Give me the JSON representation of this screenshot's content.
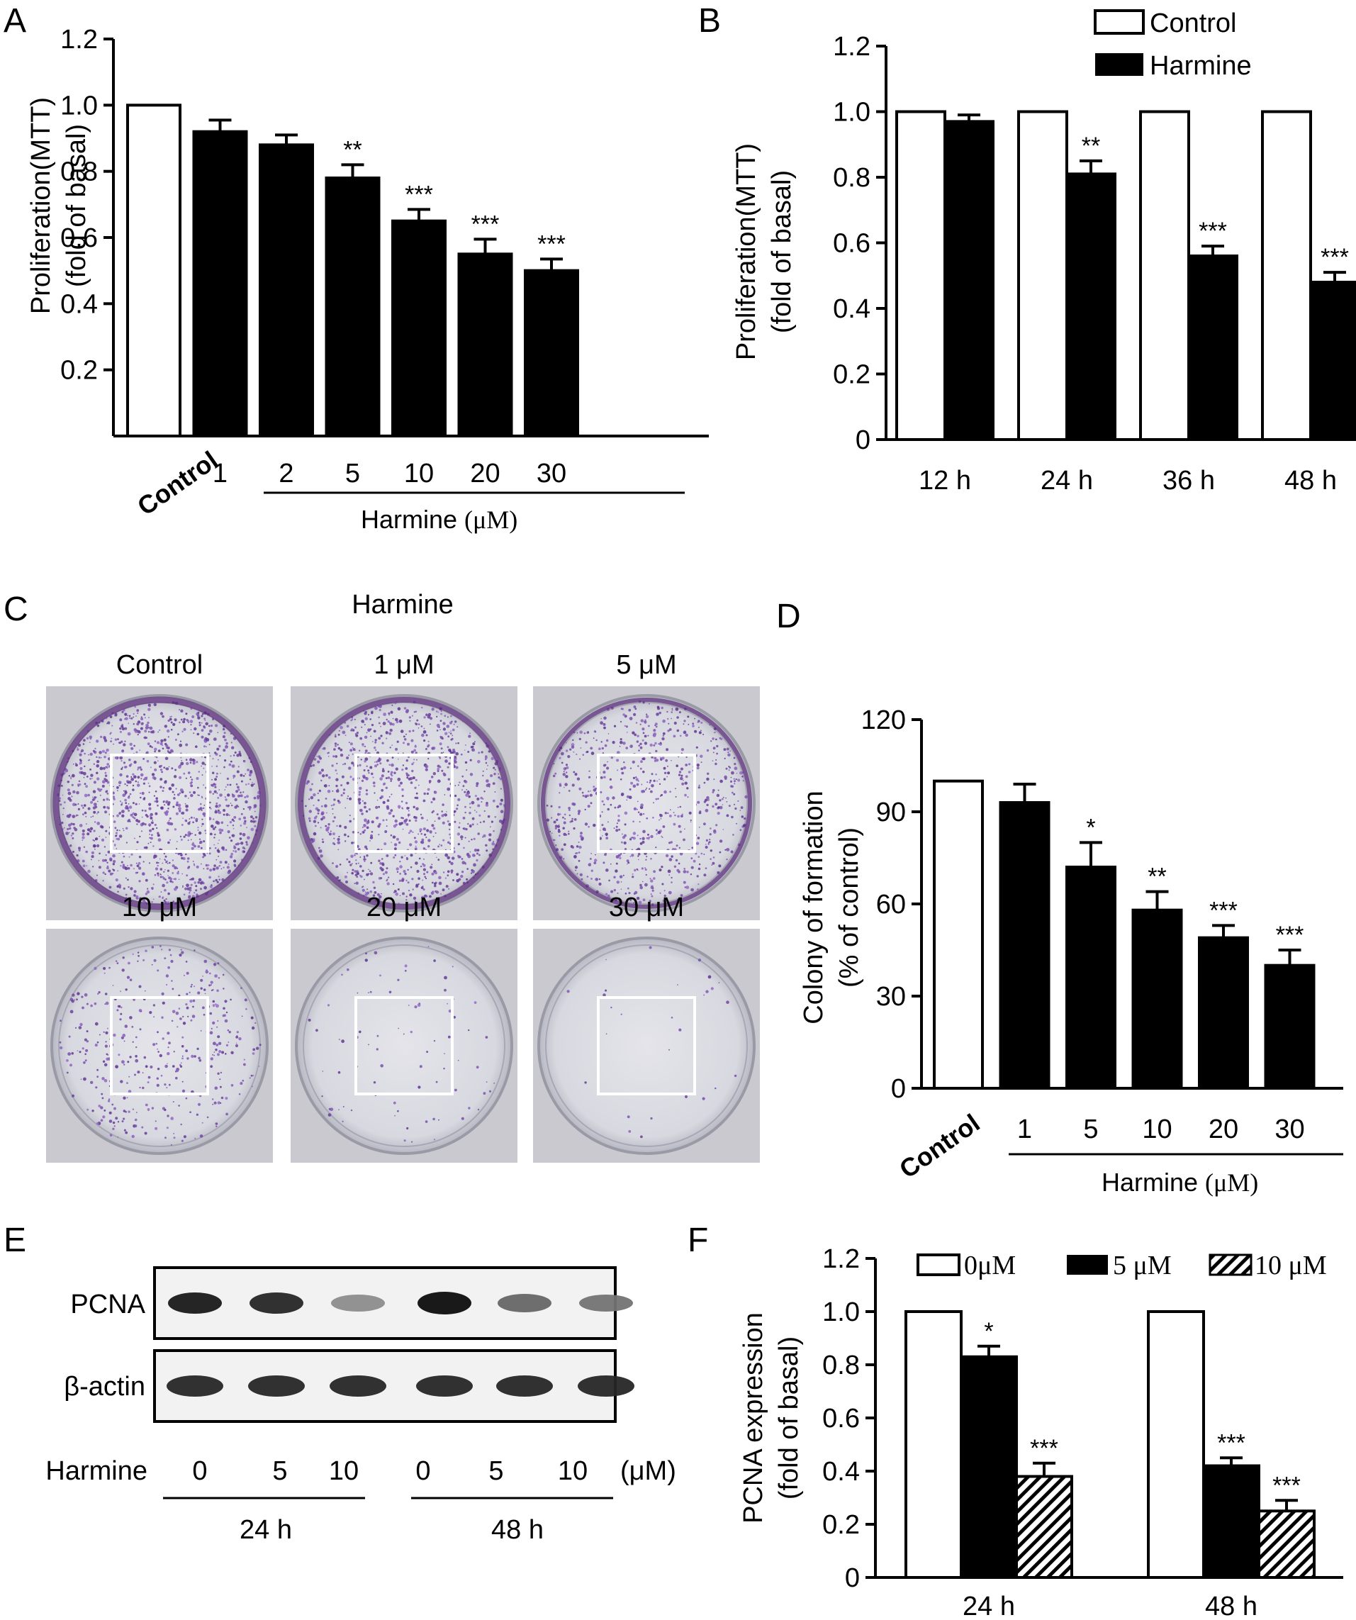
{
  "panels": {
    "A": {
      "letter": "A"
    },
    "B": {
      "letter": "B"
    },
    "C": {
      "letter": "C"
    },
    "D": {
      "letter": "D"
    },
    "E": {
      "letter": "E"
    },
    "F": {
      "letter": "F"
    }
  },
  "chart_data": [
    {
      "panel": "A",
      "type": "bar",
      "ylabel_lines": [
        "Proliferation(MTT)",
        "(fold of basal)"
      ],
      "ylim": [
        0,
        1.2
      ],
      "yticks": [
        "0.2",
        "0.4",
        "0.6",
        "0.8",
        "1.0",
        "1.2"
      ],
      "categories": [
        "Control",
        "1",
        "2",
        "5",
        "10",
        "20",
        "30"
      ],
      "values": [
        1.0,
        0.92,
        0.88,
        0.78,
        0.65,
        0.55,
        0.5
      ],
      "errors": [
        0,
        0.035,
        0.03,
        0.04,
        0.035,
        0.045,
        0.035
      ],
      "significance": [
        "",
        "",
        "",
        "**",
        "***",
        "***",
        "***"
      ],
      "group_label": "Harmine",
      "group_unit": "(μM)"
    },
    {
      "panel": "B",
      "type": "bar",
      "ylabel_lines": [
        "Proliferation(MTT)",
        "(fold of basal)"
      ],
      "ylim": [
        0,
        1.2
      ],
      "yticks": [
        "0",
        "0.2",
        "0.4",
        "0.6",
        "0.8",
        "1.0",
        "1.2"
      ],
      "categories": [
        "12 h",
        "24 h",
        "36 h",
        "48 h"
      ],
      "series": [
        {
          "name": "Control",
          "values": [
            1.0,
            1.0,
            1.0,
            1.0
          ],
          "errors": [
            0,
            0,
            0,
            0
          ],
          "significance": [
            "",
            "",
            "",
            ""
          ]
        },
        {
          "name": "Harmine",
          "values": [
            0.97,
            0.81,
            0.56,
            0.48
          ],
          "errors": [
            0.02,
            0.04,
            0.03,
            0.03
          ],
          "significance": [
            "",
            "**",
            "***",
            "***"
          ]
        }
      ],
      "legend_position": "top-right"
    },
    {
      "panel": "D",
      "type": "bar",
      "ylabel_lines": [
        "Colony of formation",
        "(% of control)"
      ],
      "ylim": [
        0,
        120
      ],
      "yticks": [
        "0",
        "30",
        "60",
        "90",
        "120"
      ],
      "categories": [
        "Control",
        "1",
        "5",
        "10",
        "20",
        "30"
      ],
      "values": [
        100,
        93,
        72,
        58,
        49,
        40
      ],
      "errors": [
        0,
        6,
        8,
        6,
        4,
        5
      ],
      "significance": [
        "",
        "",
        "*",
        "**",
        "***",
        "***"
      ],
      "group_label": "Harmine",
      "group_unit": "(μM)"
    },
    {
      "panel": "F",
      "type": "bar",
      "ylabel_lines": [
        "PCNA expression",
        "(fold of basal)"
      ],
      "ylim": [
        0,
        1.2
      ],
      "yticks": [
        "0",
        "0.2",
        "0.4",
        "0.6",
        "0.8",
        "1.0",
        "1.2"
      ],
      "categories": [
        "24 h",
        "48 h"
      ],
      "series": [
        {
          "name": "0μM",
          "values": [
            1.0,
            1.0
          ],
          "errors": [
            0,
            0
          ],
          "significance": [
            "",
            ""
          ]
        },
        {
          "name": "5 μM",
          "values": [
            0.83,
            0.42
          ],
          "errors": [
            0.04,
            0.03
          ],
          "significance": [
            "*",
            "***"
          ]
        },
        {
          "name": "10 μM",
          "values": [
            0.38,
            0.25
          ],
          "errors": [
            0.05,
            0.04
          ],
          "significance": [
            "***",
            "***"
          ]
        }
      ],
      "legend_position": "top"
    }
  ],
  "panel_c": {
    "title": "Harmine",
    "dishes": [
      {
        "label": "Control",
        "density": 0.9
      },
      {
        "label": "1 μM",
        "density": 0.75
      },
      {
        "label": "5 μM",
        "density": 0.55
      },
      {
        "label": "10 μM",
        "density": 0.3
      },
      {
        "label": "20 μM",
        "density": 0.06
      },
      {
        "label": "30 μM",
        "density": 0.02
      }
    ]
  },
  "panel_e": {
    "rows": [
      "PCNA",
      "β-actin"
    ],
    "treatment_label": "Harmine",
    "doses": [
      "0",
      "5",
      "10",
      "0",
      "5",
      "10"
    ],
    "unit": "(μM)",
    "times": [
      "24 h",
      "48 h"
    ],
    "pcna_intensity": [
      0.9,
      0.85,
      0.45,
      0.95,
      0.6,
      0.55
    ],
    "actin_intensity": [
      0.85,
      0.85,
      0.85,
      0.85,
      0.85,
      0.85
    ]
  }
}
